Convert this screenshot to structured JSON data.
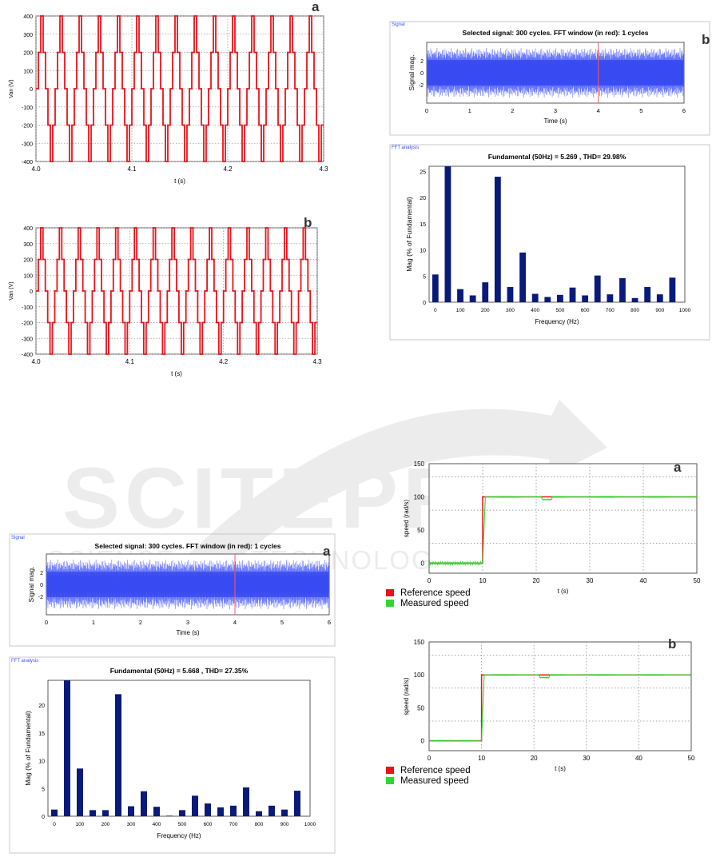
{
  "watermark": {
    "main": "SCITEPRESS",
    "sub": "SCIENCE AND TECHNOLOGY PUBLICATIONS"
  },
  "colors": {
    "line": "#e8141b",
    "bar": "#0a1a7a",
    "signal": "#3a4cff",
    "window": "#ff5a5a",
    "ref": "#e8141b",
    "meas": "#2fd62f",
    "panelBorder": "#c8c8c8",
    "grid": "#9a9a9a"
  },
  "chart_data": [
    {
      "type": "line",
      "id": "vanA",
      "label": "a",
      "xlabel": "t (s)",
      "ylabel": "Van (V)",
      "xlim": [
        4.0,
        4.3
      ],
      "ylim": [
        -400,
        400
      ],
      "xticks": [
        4.0,
        4.1,
        4.2,
        4.3
      ],
      "xtickLabels": [
        "4.0",
        "4.1",
        "4.2",
        "4.3"
      ],
      "yticks": [
        -400,
        -300,
        -200,
        -100,
        0,
        100,
        200,
        300,
        400
      ],
      "levels": [
        0,
        200,
        400,
        200,
        0,
        -200,
        -400,
        -200
      ],
      "period_s": 0.02,
      "grid": true
    },
    {
      "type": "line",
      "id": "vanB",
      "label": "b",
      "xlabel": "t (s)",
      "ylabel": "Van (V)",
      "xlim": [
        4.0,
        4.3
      ],
      "ylim": [
        -400,
        400
      ],
      "xticks": [
        4.0,
        4.1,
        4.2,
        4.3
      ],
      "xtickLabels": [
        "4.0",
        "4.1",
        "4.2",
        "4.3"
      ],
      "yticks": [
        -400,
        -300,
        -200,
        -100,
        0,
        100,
        200,
        300,
        400
      ],
      "levels": [
        0,
        200,
        400,
        200,
        0,
        -200,
        -400,
        -200
      ],
      "period_s": 0.02,
      "grid": true
    },
    {
      "type": "line",
      "id": "sigB",
      "label": "b",
      "panel_title": "Signal",
      "title": "Selected signal: 300 cycles. FFT window (in red): 1 cycles",
      "xlabel": "Time (s)",
      "ylabel": "Signal mag.",
      "xlim": [
        0,
        6
      ],
      "xticks": [
        0,
        1,
        2,
        3,
        4,
        5,
        6
      ],
      "ylim": [
        -5,
        5
      ],
      "yticks": [
        -2,
        0,
        2
      ],
      "window_at_s": 4
    },
    {
      "type": "bar",
      "id": "fftB",
      "panel_title": "FFT analysis",
      "title": "Fundamental (50Hz) = 5.269 , THD= 29.98%",
      "xlabel": "Frequency (Hz)",
      "ylabel": "Mag (% of Fundamental)",
      "xlim": [
        -25,
        1000
      ],
      "ylim": [
        0,
        26
      ],
      "xticks": [
        0,
        100,
        200,
        300,
        400,
        500,
        600,
        700,
        800,
        900,
        1000
      ],
      "yticks": [
        0,
        5,
        10,
        15,
        20,
        25
      ],
      "categories": [
        0,
        50,
        100,
        150,
        200,
        250,
        300,
        350,
        400,
        450,
        500,
        550,
        600,
        650,
        700,
        750,
        800,
        850,
        900,
        950
      ],
      "values": [
        5.3,
        26.5,
        2.5,
        1.3,
        3.8,
        24,
        2.9,
        9.5,
        1.6,
        1.0,
        1.4,
        2.8,
        1.3,
        5.1,
        1.5,
        4.6,
        0.8,
        2.9,
        1.5,
        4.7
      ]
    },
    {
      "type": "line",
      "id": "speedA",
      "label": "a",
      "xlabel": "t (s)",
      "ylabel": "speed (rad/s)",
      "xlim": [
        0,
        50
      ],
      "ylim": [
        -15,
        150
      ],
      "xticks": [
        0,
        10,
        20,
        30,
        40,
        50
      ],
      "xtickLabels": [
        "0",
        "10",
        "20",
        "30",
        "40",
        "50"
      ],
      "yticks": [
        0,
        50,
        100,
        150
      ],
      "step_time_s": 10,
      "ref_value": 100,
      "legend": [
        "Reference speed",
        "Measured speed"
      ]
    },
    {
      "type": "line",
      "id": "sigA",
      "label": "a",
      "panel_title": "Signal",
      "title": "Selected signal: 300 cycles. FFT window (in red): 1 cycles",
      "xlabel": "Time (s)",
      "ylabel": "Signal mag.",
      "xlim": [
        0,
        6
      ],
      "xticks": [
        0,
        1,
        2,
        3,
        4,
        5,
        6
      ],
      "ylim": [
        -5,
        5
      ],
      "yticks": [
        -2,
        0,
        2
      ],
      "window_at_s": 4
    },
    {
      "type": "bar",
      "id": "fftA",
      "panel_title": "FFT analysis",
      "title": "Fundamental (50Hz) = 5.668 , THD= 27.35%",
      "xlabel": "Frequency (Hz)",
      "ylabel": "Mag (% of Fundamental)",
      "xlim": [
        -25,
        1000
      ],
      "ylim": [
        0,
        24.5
      ],
      "xticks": [
        0,
        100,
        200,
        300,
        400,
        500,
        600,
        700,
        800,
        900,
        1000
      ],
      "yticks": [
        0,
        5,
        10,
        15,
        20
      ],
      "categories": [
        0,
        50,
        100,
        150,
        200,
        250,
        300,
        350,
        400,
        450,
        500,
        550,
        600,
        650,
        700,
        750,
        800,
        850,
        900,
        950
      ],
      "values": [
        1.2,
        25,
        8.6,
        1.1,
        1.1,
        22,
        1.8,
        4.5,
        1.7,
        0.1,
        1.1,
        3.7,
        2.3,
        1.6,
        1.9,
        5.2,
        0.9,
        1.9,
        1.2,
        4.6
      ]
    },
    {
      "type": "line",
      "id": "speedB",
      "label": "b",
      "xlabel": "t (s)",
      "ylabel": "speed (rad/s)",
      "xlim": [
        0,
        50
      ],
      "ylim": [
        -15,
        150
      ],
      "xticks": [
        0,
        10,
        20,
        30,
        40,
        50
      ],
      "xtickLabels": [
        "0",
        "10",
        "20",
        "30",
        "40",
        "50"
      ],
      "yticks": [
        0,
        50,
        100,
        150
      ],
      "step_time_s": 10,
      "ref_value": 100,
      "legend": [
        "Reference speed",
        "Measured speed"
      ]
    }
  ]
}
